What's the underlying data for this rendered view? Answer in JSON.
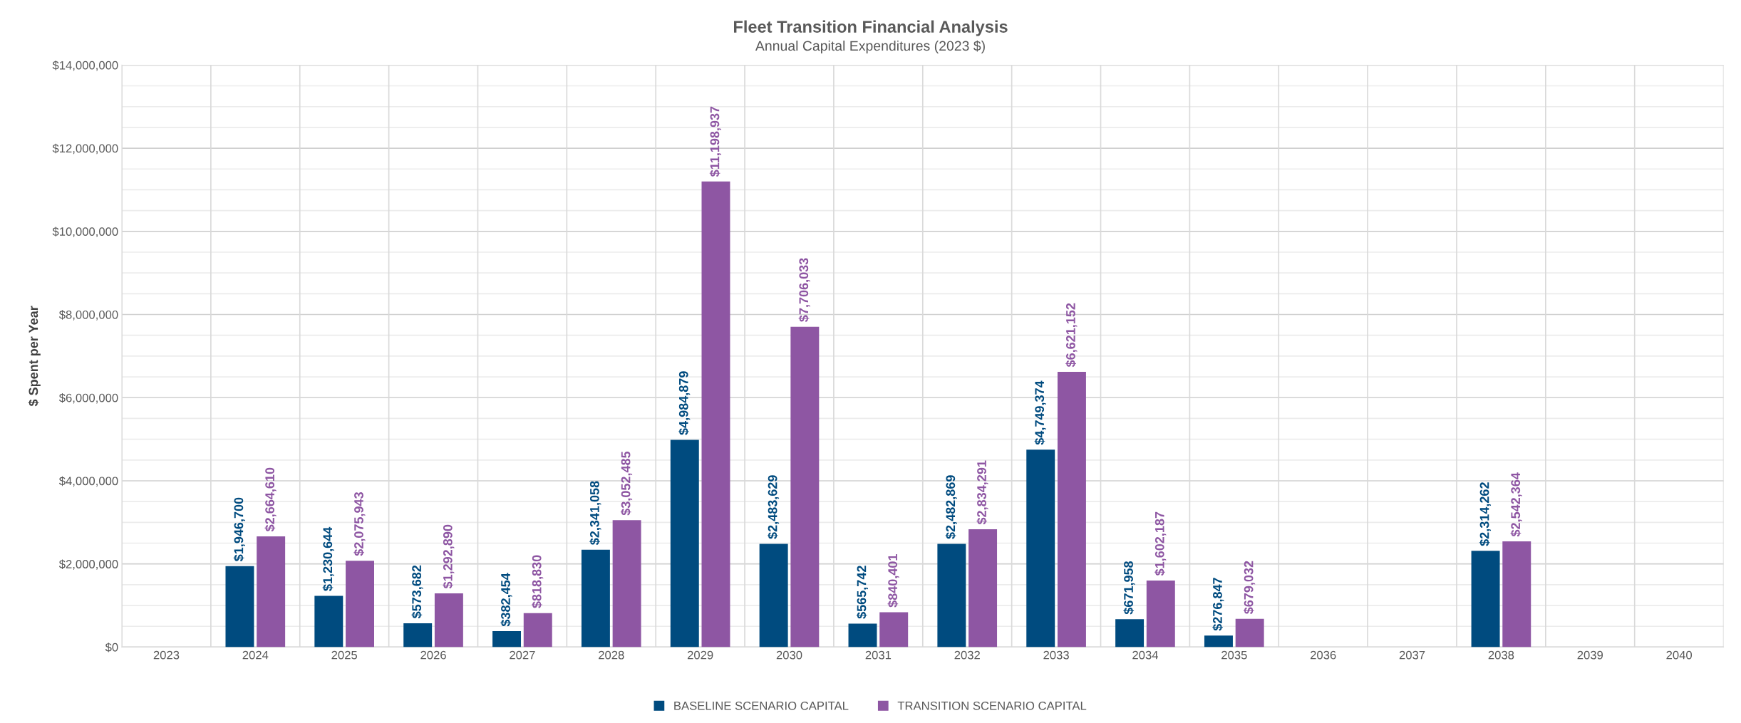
{
  "chart_data": {
    "type": "bar",
    "title": "Fleet Transition Financial Analysis",
    "subtitle": "Annual Capital Expenditures (2023 $)",
    "ylabel": "$ Spent per Year",
    "categories": [
      "2023",
      "2024",
      "2025",
      "2026",
      "2027",
      "2028",
      "2029",
      "2030",
      "2031",
      "2032",
      "2033",
      "2034",
      "2035",
      "2036",
      "2037",
      "2038",
      "2039",
      "2040"
    ],
    "series": [
      {
        "name": "BASELINE SCENARIO CAPITAL",
        "color": "#004b7f",
        "values": [
          null,
          1946700,
          1230644,
          573682,
          382454,
          2341058,
          4984879,
          2483629,
          565742,
          2482869,
          4749374,
          671958,
          276847,
          null,
          null,
          2314262,
          null,
          null
        ],
        "value_labels": [
          null,
          "$1,946,700",
          "$1,230,644",
          "$573,682",
          "$382,454",
          "$2,341,058",
          "$4,984,879",
          "$2,483,629",
          "$565,742",
          "$2,482,869",
          "$4,749,374",
          "$671,958",
          "$276,847",
          null,
          null,
          "$2,314,262",
          null,
          null
        ]
      },
      {
        "name": "TRANSITION SCENARIO CAPITAL",
        "color": "#8e56a3",
        "values": [
          null,
          2664610,
          2075943,
          1292890,
          818830,
          3052485,
          11198937,
          7706033,
          840401,
          2834291,
          6621152,
          1602187,
          679032,
          null,
          null,
          2542364,
          null,
          null
        ],
        "value_labels": [
          null,
          "$2,664,610",
          "$2,075,943",
          "$1,292,890",
          "$818,830",
          "$3,052,485",
          "$11,198,937",
          "$7,706,033",
          "$840,401",
          "$2,834,291",
          "$6,621,152",
          "$1,602,187",
          "$679,032",
          null,
          null,
          "$2,542,364",
          null,
          null
        ]
      }
    ],
    "ylim": [
      0,
      14000000
    ],
    "yticks": [
      {
        "value": 0,
        "label": "$0"
      },
      {
        "value": 500000,
        "label": null
      },
      {
        "value": 1000000,
        "label": null
      },
      {
        "value": 1500000,
        "label": null
      },
      {
        "value": 2000000,
        "label": "$2,000,000"
      },
      {
        "value": 2500000,
        "label": null
      },
      {
        "value": 3000000,
        "label": null
      },
      {
        "value": 3500000,
        "label": null
      },
      {
        "value": 4000000,
        "label": "$4,000,000"
      },
      {
        "value": 4500000,
        "label": null
      },
      {
        "value": 5000000,
        "label": null
      },
      {
        "value": 5500000,
        "label": null
      },
      {
        "value": 6000000,
        "label": "$6,000,000"
      },
      {
        "value": 6500000,
        "label": null
      },
      {
        "value": 7000000,
        "label": null
      },
      {
        "value": 7500000,
        "label": null
      },
      {
        "value": 8000000,
        "label": "$8,000,000"
      },
      {
        "value": 8500000,
        "label": null
      },
      {
        "value": 9000000,
        "label": null
      },
      {
        "value": 9500000,
        "label": null
      },
      {
        "value": 10000000,
        "label": "$10,000,000"
      },
      {
        "value": 10500000,
        "label": null
      },
      {
        "value": 11000000,
        "label": null
      },
      {
        "value": 11500000,
        "label": null
      },
      {
        "value": 12000000,
        "label": "$12,000,000"
      },
      {
        "value": 12500000,
        "label": null
      },
      {
        "value": 13000000,
        "label": null
      },
      {
        "value": 13500000,
        "label": null
      },
      {
        "value": 14000000,
        "label": "$14,000,000"
      }
    ],
    "grid": true,
    "legend": "bottom"
  }
}
